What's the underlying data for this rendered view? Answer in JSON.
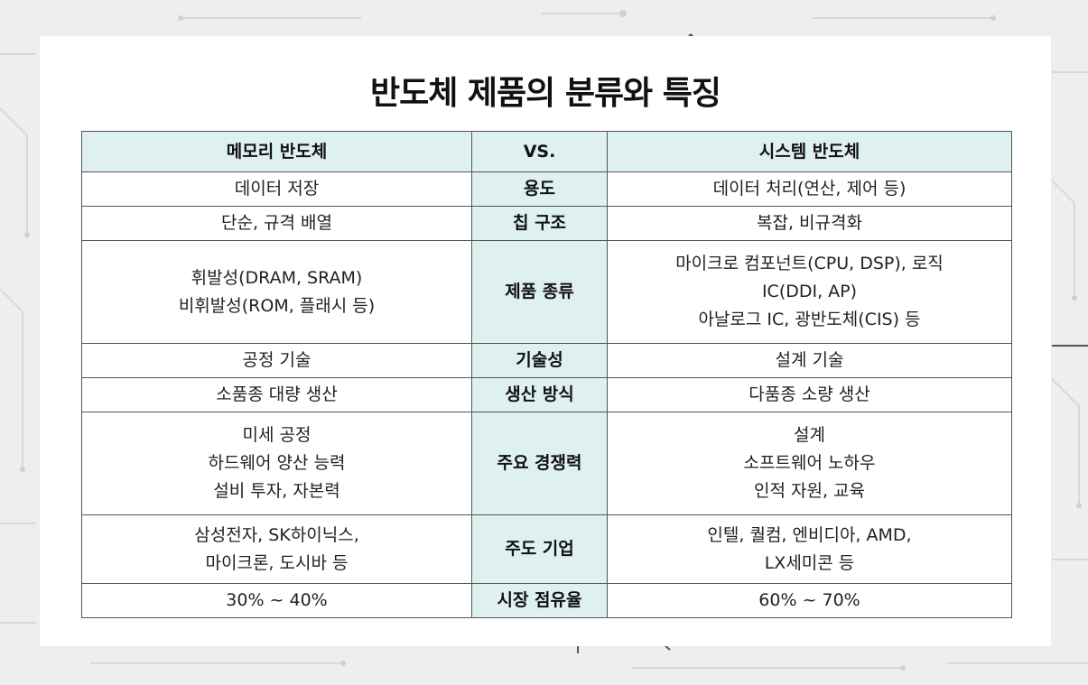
{
  "title": "반도체 제품의 분류와 특징",
  "headers": {
    "left": "메모리 반도체",
    "mid": "VS.",
    "right": "시스템 반도체"
  },
  "rows": [
    {
      "category": "용도",
      "left": [
        "데이터 저장"
      ],
      "right": [
        "데이터 처리(연산, 제어 등)"
      ]
    },
    {
      "category": "칩 구조",
      "left": [
        "단순, 규격 배열"
      ],
      "right": [
        "복잡, 비규격화"
      ]
    },
    {
      "category": "제품 종류",
      "left": [
        "휘발성(DRAM, SRAM)",
        "비휘발성(ROM, 플래시 등)"
      ],
      "right": [
        "마이크로 컴포넌트(CPU, DSP), 로직",
        "IC(DDI, AP)",
        "아날로그 IC, 광반도체(CIS) 등"
      ]
    },
    {
      "category": "기술성",
      "left": [
        "공정 기술"
      ],
      "right": [
        "설계 기술"
      ]
    },
    {
      "category": "생산 방식",
      "left": [
        "소품종 대량 생산"
      ],
      "right": [
        "다품종 소량 생산"
      ]
    },
    {
      "category": "주요 경쟁력",
      "left": [
        "미세 공정",
        "하드웨어 양산 능력",
        "설비 투자, 자본력"
      ],
      "right": [
        "설계",
        "소프트웨어 노하우",
        "인적 자원, 교육"
      ]
    },
    {
      "category": "주도 기업",
      "left": [
        "삼성전자, SK하이닉스,",
        "마이크론, 도시바 등"
      ],
      "right": [
        "인텔, 퀄컴, 엔비디아, AMD,",
        "LX세미콘 등"
      ]
    },
    {
      "category": "시장 점유율",
      "left": [
        "30% ~ 40%"
      ],
      "right": [
        "60% ~ 70%"
      ]
    }
  ]
}
